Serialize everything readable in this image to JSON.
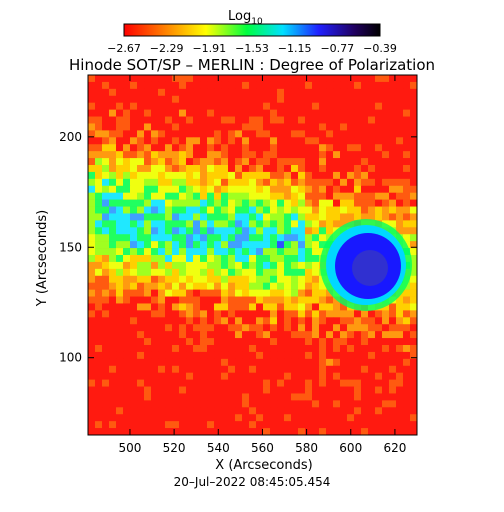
{
  "colorbar": {
    "label": "Log",
    "label_sub": "10",
    "ticks": [
      "−2.67",
      "−2.29",
      "−1.91",
      "−1.53",
      "−1.15",
      "−0.77",
      "−0.39"
    ],
    "colors": [
      "#ff0000",
      "#ff8000",
      "#ffff00",
      "#00ff40",
      "#00e0ff",
      "#2020ff",
      "#200060",
      "#000000"
    ]
  },
  "plot": {
    "title": "Hinode SOT/SP – MERLIN : Degree of Polarization",
    "xlabel": "X (Arcseconds)",
    "ylabel": "Y (Arcseconds)",
    "timestamp": "20–Jul–2022 08:45:05.454"
  },
  "chart_data": {
    "type": "heatmap",
    "title": "Hinode SOT/SP – MERLIN : Degree of Polarization",
    "xlabel": "X (Arcseconds)",
    "ylabel": "Y (Arcseconds)",
    "xlim": [
      481,
      630
    ],
    "ylim": [
      65,
      228
    ],
    "x_ticks": [
      500,
      520,
      540,
      560,
      580,
      600,
      620
    ],
    "y_ticks": [
      100,
      150,
      200
    ],
    "colorbar_label": "Log10",
    "colorbar_range": [
      -2.67,
      -0.39
    ],
    "colorbar_ticks": [
      -2.67,
      -2.29,
      -1.91,
      -1.53,
      -1.15,
      -0.77,
      -0.39
    ],
    "features": [
      {
        "kind": "sunspot",
        "x": 603,
        "y": 146,
        "value": -0.9
      }
    ]
  }
}
